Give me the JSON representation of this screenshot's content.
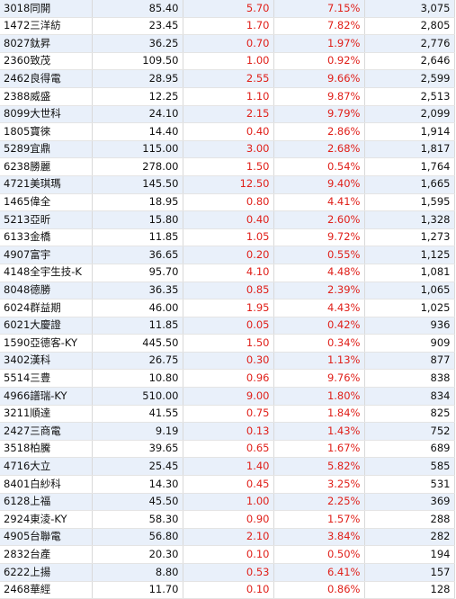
{
  "table": {
    "rows": [
      [
        "3018同開",
        "85.40",
        "5.70",
        "7.15%",
        "3,075"
      ],
      [
        "1472三洋紡",
        "23.45",
        "1.70",
        "7.82%",
        "2,805"
      ],
      [
        "8027鈦昇",
        "36.25",
        "0.70",
        "1.97%",
        "2,776"
      ],
      [
        "2360致茂",
        "109.50",
        "1.00",
        "0.92%",
        "2,646"
      ],
      [
        "2462良得電",
        "28.95",
        "2.55",
        "9.66%",
        "2,599"
      ],
      [
        "2388威盛",
        "12.25",
        "1.10",
        "9.87%",
        "2,513"
      ],
      [
        "8099大世科",
        "24.10",
        "2.15",
        "9.79%",
        "2,099"
      ],
      [
        "1805寶徠",
        "14.40",
        "0.40",
        "2.86%",
        "1,914"
      ],
      [
        "5289宜鼎",
        "115.00",
        "3.00",
        "2.68%",
        "1,817"
      ],
      [
        "6238勝麗",
        "278.00",
        "1.50",
        "0.54%",
        "1,764"
      ],
      [
        "4721美琪瑪",
        "145.50",
        "12.50",
        "9.40%",
        "1,665"
      ],
      [
        "1465偉全",
        "18.95",
        "0.80",
        "4.41%",
        "1,595"
      ],
      [
        "5213亞昕",
        "15.80",
        "0.40",
        "2.60%",
        "1,328"
      ],
      [
        "6133金橋",
        "11.85",
        "1.05",
        "9.72%",
        "1,273"
      ],
      [
        "4907富宇",
        "36.65",
        "0.20",
        "0.55%",
        "1,125"
      ],
      [
        "4148全宇生技-K",
        "95.70",
        "4.10",
        "4.48%",
        "1,081"
      ],
      [
        "8048德勝",
        "36.35",
        "0.85",
        "2.39%",
        "1,065"
      ],
      [
        "6024群益期",
        "46.00",
        "1.95",
        "4.43%",
        "1,025"
      ],
      [
        "6021大慶證",
        "11.85",
        "0.05",
        "0.42%",
        "936"
      ],
      [
        "1590亞德客-KY",
        "445.50",
        "1.50",
        "0.34%",
        "909"
      ],
      [
        "3402漢科",
        "26.75",
        "0.30",
        "1.13%",
        "877"
      ],
      [
        "5514三豊",
        "10.80",
        "0.96",
        "9.76%",
        "838"
      ],
      [
        "4966譜瑞-KY",
        "510.00",
        "9.00",
        "1.80%",
        "834"
      ],
      [
        "3211順達",
        "41.55",
        "0.75",
        "1.84%",
        "825"
      ],
      [
        "2427三商電",
        "9.19",
        "0.13",
        "1.43%",
        "752"
      ],
      [
        "3518柏騰",
        "39.65",
        "0.65",
        "1.67%",
        "689"
      ],
      [
        "4716大立",
        "25.45",
        "1.40",
        "5.82%",
        "585"
      ],
      [
        "8401白紗科",
        "14.30",
        "0.45",
        "3.25%",
        "531"
      ],
      [
        "6128上福",
        "45.50",
        "1.00",
        "2.25%",
        "369"
      ],
      [
        "2924東淩-KY",
        "58.30",
        "0.90",
        "1.57%",
        "288"
      ],
      [
        "4905台聯電",
        "56.80",
        "2.10",
        "3.84%",
        "282"
      ],
      [
        "2832台產",
        "20.30",
        "0.10",
        "0.50%",
        "194"
      ],
      [
        "6222上揚",
        "8.80",
        "0.53",
        "6.41%",
        "157"
      ],
      [
        "2468華經",
        "11.70",
        "0.10",
        "0.86%",
        "128"
      ]
    ]
  },
  "colors": {
    "up": "#e0201a",
    "row_stripe": "#e9f0fa",
    "row_plain": "#ffffff",
    "text": "#111111"
  }
}
